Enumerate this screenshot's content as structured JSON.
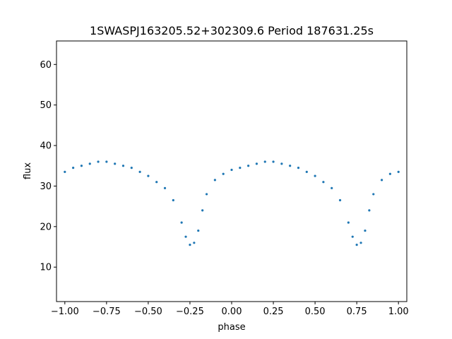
{
  "chart_data": {
    "type": "scatter",
    "title": "1SWASPJ163205.52+302309.6 Period 187631.25s",
    "xlabel": "phase",
    "ylabel": "flux",
    "xlim": [
      -1.05,
      1.05
    ],
    "ylim": [
      1.5,
      65.8
    ],
    "grid": false,
    "legend": "none",
    "point_color": "#1f77b4",
    "x_ticks": [
      -1.0,
      -0.75,
      -0.5,
      -0.25,
      0.0,
      0.25,
      0.5,
      0.75,
      1.0
    ],
    "x_tick_labels": [
      "−1.00",
      "−0.75",
      "−0.50",
      "−0.25",
      "0.00",
      "0.25",
      "0.50",
      "0.75",
      "1.00"
    ],
    "y_ticks": [
      10,
      20,
      30,
      40,
      50,
      60
    ],
    "y_tick_labels": [
      "10",
      "20",
      "30",
      "40",
      "50",
      "60"
    ],
    "series": [
      {
        "x": [
          -1.0,
          -0.95,
          -0.9,
          -0.85,
          -0.8,
          -0.75,
          -0.7,
          -0.65,
          -0.6,
          -0.55,
          -0.5,
          -0.45,
          -0.4,
          -0.35,
          -0.3,
          -0.275,
          -0.25,
          -0.225,
          -0.2,
          -0.175,
          -0.15,
          -0.1,
          -0.05,
          0.0,
          0.05,
          0.1,
          0.15,
          0.2,
          0.25,
          0.3,
          0.35,
          0.4,
          0.45,
          0.5,
          0.55,
          0.6,
          0.65,
          0.7,
          0.725,
          0.75,
          0.775,
          0.8,
          0.825,
          0.85,
          0.9,
          0.95,
          1.0
        ],
        "y": [
          33.5,
          34.5,
          35.0,
          35.5,
          36.0,
          36.0,
          35.5,
          35.0,
          34.5,
          33.5,
          32.5,
          31.0,
          29.5,
          26.5,
          21.0,
          17.5,
          15.5,
          16.0,
          19.0,
          24.0,
          28.0,
          31.5,
          33.0,
          34.0,
          34.5,
          35.0,
          35.5,
          36.0,
          36.0,
          35.5,
          35.0,
          34.5,
          33.5,
          32.5,
          31.0,
          29.5,
          26.5,
          21.0,
          17.5,
          15.5,
          16.0,
          19.0,
          24.0,
          28.0,
          31.5,
          33.0,
          33.5
        ]
      }
    ]
  }
}
